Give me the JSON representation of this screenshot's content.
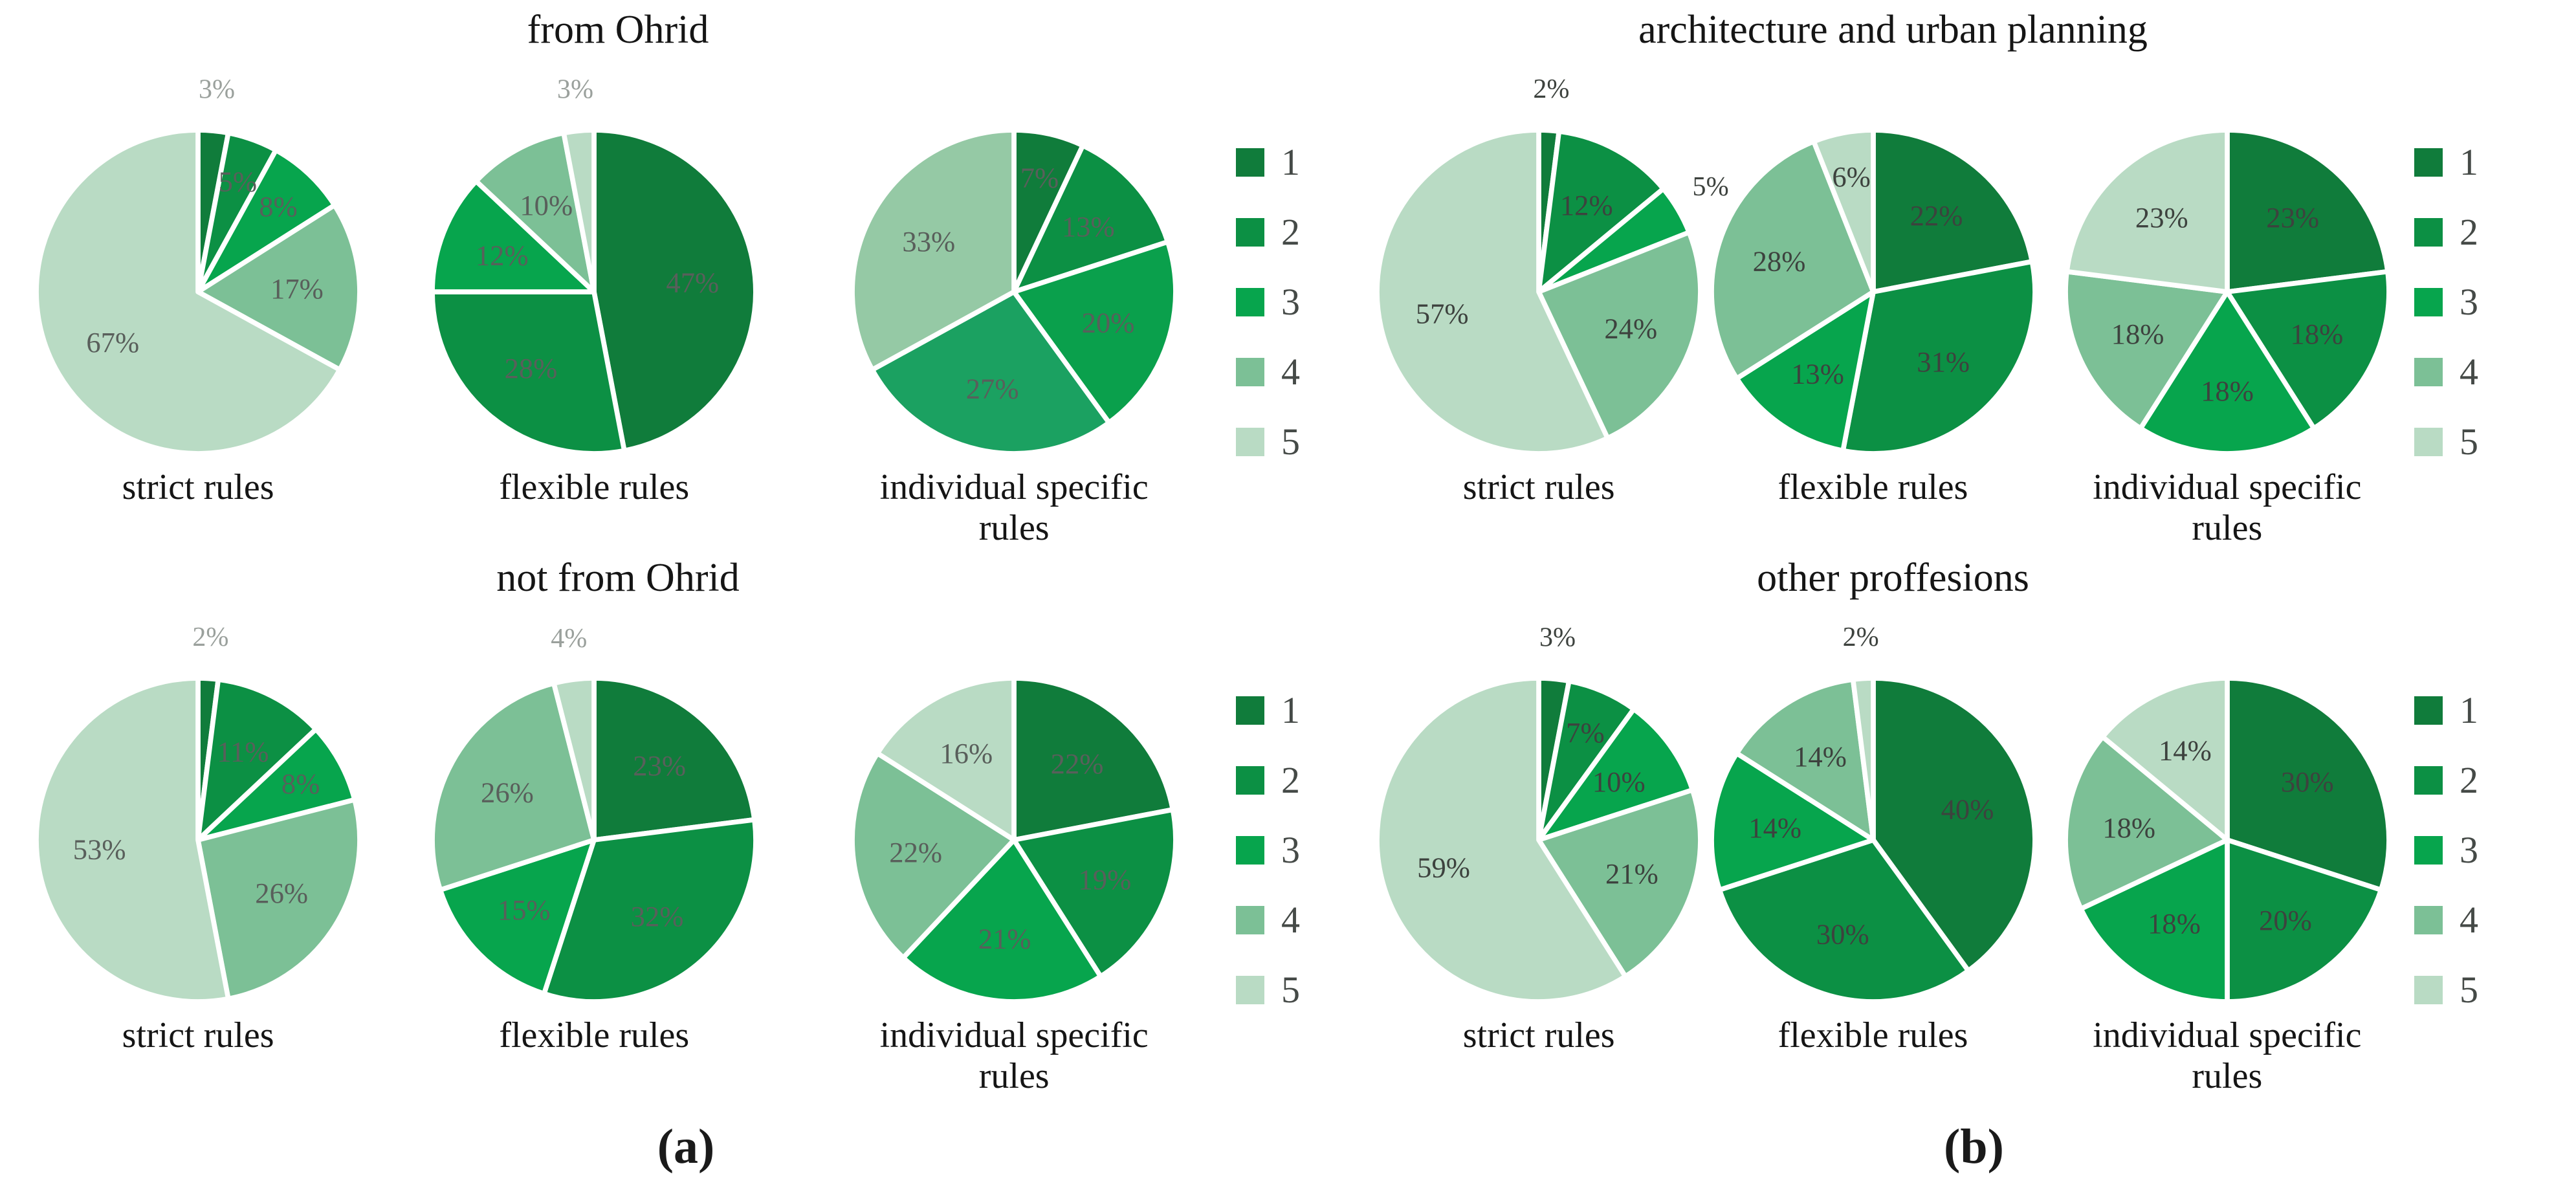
{
  "figure": {
    "palette": [
      "#107C3B",
      "#0C9044",
      "#07A54D",
      "#7CC096",
      "#B9DBC4"
    ],
    "legend_labels": [
      "1",
      "2",
      "3",
      "4",
      "5"
    ],
    "panels": [
      {
        "id": "a",
        "caption": "(a)",
        "inside_label_color": "#595f5b",
        "outside_label_color": "#9aa09c"
      },
      {
        "id": "b",
        "caption": "(b)",
        "inside_label_color": "#3d423e",
        "outside_label_color": "#3d423e"
      }
    ]
  },
  "chart_data": [
    {
      "type": "pie",
      "panel": "a",
      "row_title": "from Ohrid",
      "title": "strict rules",
      "categories": [
        "1",
        "2",
        "3",
        "4",
        "5"
      ],
      "values": [
        3,
        5,
        8,
        17,
        67
      ],
      "labels": [
        "3%",
        "5%",
        "8%",
        "17%",
        "67%"
      ],
      "outside": [
        0
      ],
      "legend": [
        "1",
        "2",
        "3",
        "4",
        "5"
      ],
      "legend_position": "right"
    },
    {
      "type": "pie",
      "panel": "a",
      "row_title": "from Ohrid",
      "title": "flexible rules",
      "categories": [
        "1",
        "2",
        "3",
        "4",
        "5"
      ],
      "values": [
        47,
        28,
        12,
        10,
        3
      ],
      "labels": [
        "47%",
        "28%",
        "12%",
        "10%",
        "3%"
      ],
      "outside": [
        4
      ],
      "legend": [
        "1",
        "2",
        "3",
        "4",
        "5"
      ],
      "legend_position": "right"
    },
    {
      "type": "pie",
      "panel": "a",
      "row_title": "from Ohrid",
      "title": "individual specific rules",
      "categories": [
        "1",
        "2",
        "3",
        "4",
        "5"
      ],
      "values": [
        7,
        13,
        20,
        27,
        33
      ],
      "labels": [
        "7%",
        "13%",
        "20%",
        "27%",
        "33%"
      ],
      "outside": [],
      "colors": [
        "#107C3B",
        "#0C9044",
        "#0AA04C",
        "#1BA161",
        "#95C9A5"
      ],
      "legend": [
        "1",
        "2",
        "3",
        "4",
        "5"
      ],
      "legend_position": "right"
    },
    {
      "type": "pie",
      "panel": "a",
      "row_title": "not from Ohrid",
      "title": "strict rules",
      "categories": [
        "1",
        "2",
        "3",
        "4",
        "5"
      ],
      "values": [
        2,
        11,
        8,
        26,
        53
      ],
      "labels": [
        "2%",
        "11%",
        "8%",
        "26%",
        "53%"
      ],
      "outside": [
        0
      ],
      "legend": [
        "1",
        "2",
        "3",
        "4",
        "5"
      ],
      "legend_position": "right"
    },
    {
      "type": "pie",
      "panel": "a",
      "row_title": "not from Ohrid",
      "title": "flexible rules",
      "categories": [
        "1",
        "2",
        "3",
        "4",
        "5"
      ],
      "values": [
        23,
        32,
        15,
        26,
        4
      ],
      "labels": [
        "23%",
        "32%",
        "15%",
        "26%",
        "4%"
      ],
      "outside": [
        4
      ],
      "legend": [
        "1",
        "2",
        "3",
        "4",
        "5"
      ],
      "legend_position": "right"
    },
    {
      "type": "pie",
      "panel": "a",
      "row_title": "not from Ohrid",
      "title": "individual specific rules",
      "categories": [
        "1",
        "2",
        "3",
        "4",
        "5"
      ],
      "values": [
        22,
        19,
        21,
        22,
        16
      ],
      "labels": [
        "22%",
        "19%",
        "21%",
        "22%",
        "16%"
      ],
      "outside": [],
      "legend": [
        "1",
        "2",
        "3",
        "4",
        "5"
      ],
      "legend_position": "right"
    },
    {
      "type": "pie",
      "panel": "b",
      "row_title": "architecture and urban planning",
      "title": "strict rules",
      "categories": [
        "1",
        "2",
        "3",
        "4",
        "5"
      ],
      "values": [
        2,
        12,
        5,
        24,
        57
      ],
      "labels": [
        "2%",
        "12%",
        "5%",
        "24%",
        "57%"
      ],
      "outside": [
        0,
        2
      ],
      "legend": [
        "1",
        "2",
        "3",
        "4",
        "5"
      ],
      "legend_position": "right"
    },
    {
      "type": "pie",
      "panel": "b",
      "row_title": "architecture and urban planning",
      "title": "flexible rules",
      "categories": [
        "1",
        "2",
        "3",
        "4",
        "5"
      ],
      "values": [
        22,
        31,
        13,
        28,
        6
      ],
      "labels": [
        "22%",
        "31%",
        "13%",
        "28%",
        "6%"
      ],
      "outside": [],
      "legend": [
        "1",
        "2",
        "3",
        "4",
        "5"
      ],
      "legend_position": "right"
    },
    {
      "type": "pie",
      "panel": "b",
      "row_title": "architecture and urban planning",
      "title": "individual specific rules",
      "categories": [
        "1",
        "2",
        "3",
        "4",
        "5"
      ],
      "values": [
        23,
        18,
        18,
        18,
        23
      ],
      "labels": [
        "23%",
        "18%",
        "18%",
        "18%",
        "23%"
      ],
      "outside": [],
      "legend": [
        "1",
        "2",
        "3",
        "4",
        "5"
      ],
      "legend_position": "right"
    },
    {
      "type": "pie",
      "panel": "b",
      "row_title": "other proffesions",
      "title": "strict rules",
      "categories": [
        "1",
        "2",
        "3",
        "4",
        "5"
      ],
      "values": [
        3,
        7,
        10,
        21,
        59
      ],
      "labels": [
        "3%",
        "7%",
        "10%",
        "21%",
        "59%"
      ],
      "outside": [
        0
      ],
      "legend": [
        "1",
        "2",
        "3",
        "4",
        "5"
      ],
      "legend_position": "right"
    },
    {
      "type": "pie",
      "panel": "b",
      "row_title": "other proffesions",
      "title": "flexible rules",
      "categories": [
        "1",
        "2",
        "3",
        "4",
        "5"
      ],
      "values": [
        40,
        30,
        14,
        14,
        2
      ],
      "labels": [
        "40%",
        "30%",
        "14%",
        "14%",
        "2%"
      ],
      "outside": [
        4
      ],
      "legend": [
        "1",
        "2",
        "3",
        "4",
        "5"
      ],
      "legend_position": "right"
    },
    {
      "type": "pie",
      "panel": "b",
      "row_title": "other proffesions",
      "title": "individual specific rules",
      "categories": [
        "1",
        "2",
        "3",
        "4",
        "5"
      ],
      "values": [
        30,
        20,
        18,
        18,
        14
      ],
      "labels": [
        "30%",
        "20%",
        "18%",
        "18%",
        "14%"
      ],
      "outside": [],
      "legend": [
        "1",
        "2",
        "3",
        "4",
        "5"
      ],
      "legend_position": "right"
    }
  ]
}
